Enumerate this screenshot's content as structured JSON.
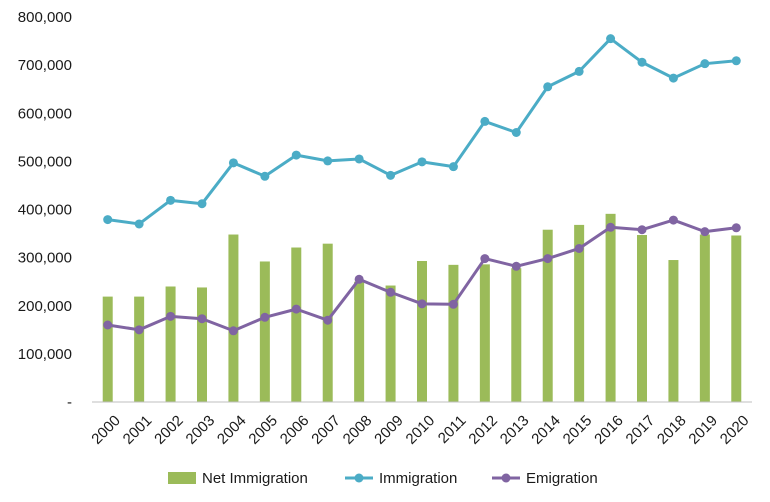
{
  "chart_data": {
    "type": "bar+line",
    "categories": [
      "2000",
      "2001",
      "2002",
      "2003",
      "2004",
      "2005",
      "2006",
      "2007",
      "2008",
      "2009",
      "2010",
      "2011",
      "2012",
      "2013",
      "2014",
      "2015",
      "2016",
      "2017",
      "2018",
      "2019",
      "2020"
    ],
    "series": [
      {
        "name": "Net Immigration",
        "kind": "bar",
        "color": "#9bbb59",
        "values": [
          219000,
          219000,
          240000,
          238000,
          348000,
          292000,
          321000,
          329000,
          250000,
          242000,
          293000,
          285000,
          286000,
          278000,
          358000,
          368000,
          391000,
          347000,
          295000,
          348000,
          346000
        ]
      },
      {
        "name": "Immigration",
        "kind": "line",
        "color": "#4bacc6",
        "values": [
          379000,
          370000,
          419000,
          412000,
          497000,
          469000,
          513000,
          501000,
          505000,
          471000,
          499000,
          489000,
          583000,
          560000,
          655000,
          687000,
          755000,
          706000,
          673000,
          703000,
          709000
        ]
      },
      {
        "name": "Emigration",
        "kind": "line",
        "color": "#8064a2",
        "values": [
          160000,
          150000,
          178000,
          173000,
          148000,
          176000,
          193000,
          170000,
          255000,
          228000,
          204000,
          203000,
          298000,
          282000,
          298000,
          319000,
          363000,
          358000,
          378000,
          354000,
          362000
        ]
      }
    ],
    "y_ticks": [
      "-",
      "100,000",
      "200,000",
      "300,000",
      "400,000",
      "500,000",
      "600,000",
      "700,000",
      "800,000"
    ],
    "ylim": [
      0,
      800000
    ],
    "grid": false,
    "legend_position": "bottom"
  }
}
